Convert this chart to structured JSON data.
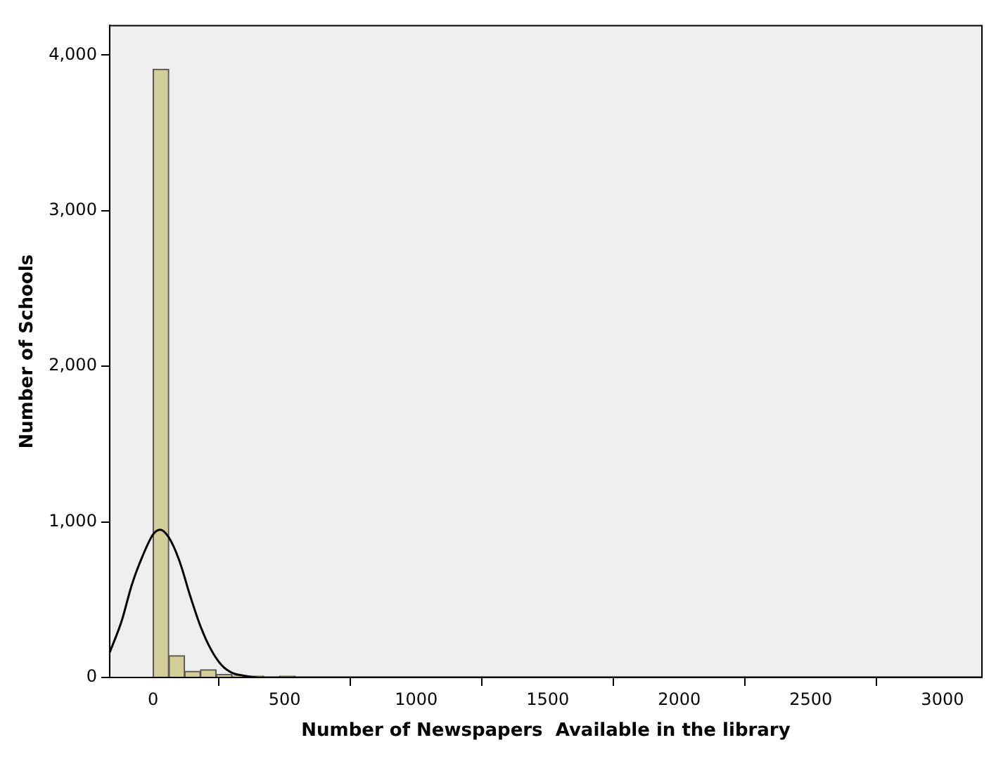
{
  "chart_data": {
    "type": "histogram",
    "xlabel": "Number of Newspapers  Available in the library",
    "ylabel": "Number of Schools",
    "bins": [
      0,
      60,
      120,
      180,
      240,
      300,
      360,
      420,
      480,
      540,
      600,
      660,
      720
    ],
    "values": [
      3910,
      140,
      40,
      50,
      20,
      10,
      10,
      0,
      10,
      0,
      0,
      0
    ],
    "color": "#d3ce98",
    "series": [
      {
        "type": "line",
        "color": "#000000",
        "x": [
          -165,
          -120,
          -80,
          -40,
          0,
          27,
          60,
          100,
          140,
          180,
          220,
          260,
          300,
          350,
          400,
          500,
          3150
        ],
        "values": [
          160,
          360,
          600,
          780,
          920,
          950,
          900,
          750,
          530,
          330,
          180,
          80,
          30,
          10,
          0,
          0,
          0
        ]
      }
    ],
    "xlim": [
      -165,
      3150
    ],
    "xticks": [
      0,
      500,
      1000,
      1500,
      2000,
      2500,
      3000
    ],
    "ylim": [
      0,
      4190
    ],
    "yticks": [
      {
        "value": 0,
        "label": "0"
      },
      {
        "value": 1000,
        "label": "1,000"
      },
      {
        "value": 2000,
        "label": "2,000"
      },
      {
        "value": 3000,
        "label": "3,000"
      },
      {
        "value": 4000,
        "label": "4,000"
      }
    ],
    "grid": false,
    "legend": false
  }
}
